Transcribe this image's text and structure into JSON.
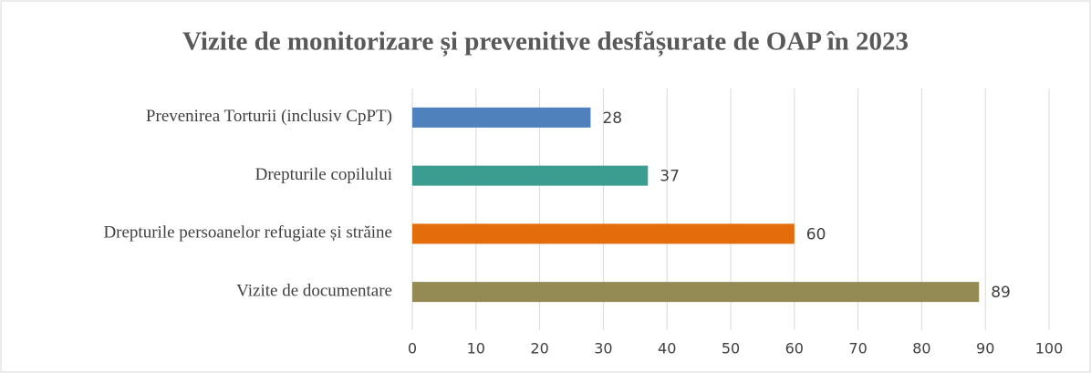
{
  "chart_data": {
    "type": "bar",
    "orientation": "horizontal",
    "title": "Vizite de monitorizare și prevenitive desfășurate de OAP în 2023",
    "categories": [
      "Prevenirea Torturii (inclusiv CpPT)",
      "Drepturile copilului",
      "Drepturile persoanelor refugiate și străine",
      "Vizite de documentare"
    ],
    "values": [
      28,
      37,
      60,
      89
    ],
    "colors": [
      "#4f81bd",
      "#3a9d8f",
      "#e46c0a",
      "#948a54"
    ],
    "xlim": [
      0,
      100
    ],
    "xticks": [
      0,
      10,
      20,
      30,
      40,
      50,
      60,
      70,
      80,
      90,
      100
    ],
    "grid": true
  }
}
